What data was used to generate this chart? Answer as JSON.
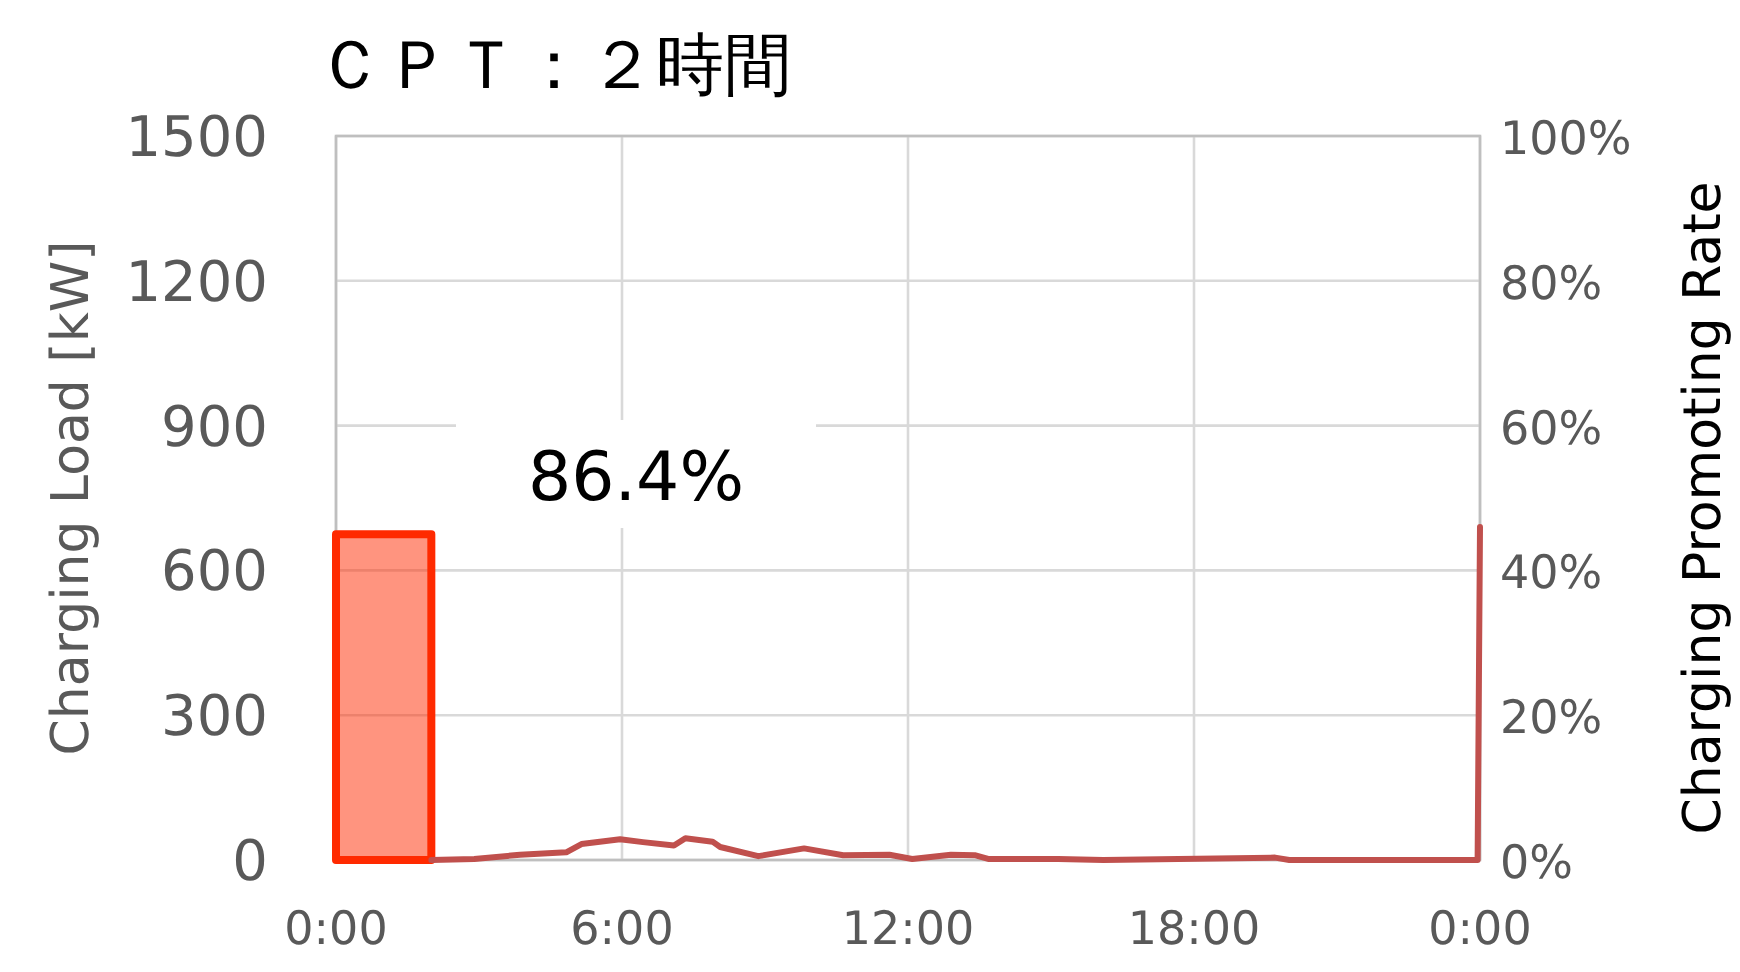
{
  "chart_data": {
    "type": "line",
    "title": "ＣＰＴ：２時間",
    "ylabel": "Charging Load [kW]",
    "y2label": "Charging Promoting Rate",
    "annotations": [
      "86.4%"
    ],
    "xlim": [
      0,
      24
    ],
    "xticks": [
      {
        "value": 0,
        "label": "0:00"
      },
      {
        "value": 6,
        "label": "6:00"
      },
      {
        "value": 12,
        "label": "12:00"
      },
      {
        "value": 18,
        "label": "18:00"
      },
      {
        "value": 24,
        "label": "0:00"
      }
    ],
    "ylim": [
      0,
      1500
    ],
    "yticks": [
      0,
      300,
      600,
      900,
      1200,
      1500
    ],
    "y2lim": [
      0,
      100
    ],
    "y2ticks": [
      {
        "value": 0,
        "label": "0%"
      },
      {
        "value": 20,
        "label": "20%"
      },
      {
        "value": 40,
        "label": "40%"
      },
      {
        "value": 60,
        "label": "60%"
      },
      {
        "value": 80,
        "label": "80%"
      },
      {
        "value": 100,
        "label": "100%"
      }
    ],
    "grid": true,
    "series": [
      {
        "type": "area",
        "color": "#ff2a00",
        "x": [
          0,
          2
        ],
        "values": [
          675,
          675
        ]
      },
      {
        "type": "line",
        "color": "#c0504d",
        "x": [
          2.0,
          2.9,
          3.86,
          4.83,
          5.15,
          5.96,
          6.44,
          7.09,
          7.33,
          7.9,
          8.06,
          8.86,
          9.82,
          10.64,
          11.61,
          12.09,
          12.9,
          13.4,
          13.7,
          15.15,
          16.1,
          19.7,
          20.0,
          23.95,
          24
        ],
        "values": [
          0,
          2,
          11,
          16,
          33,
          43,
          37,
          30,
          45,
          38,
          27,
          8,
          24,
          10,
          11,
          2,
          11,
          10,
          2,
          2,
          0,
          5,
          0,
          0,
          690
        ]
      }
    ]
  }
}
